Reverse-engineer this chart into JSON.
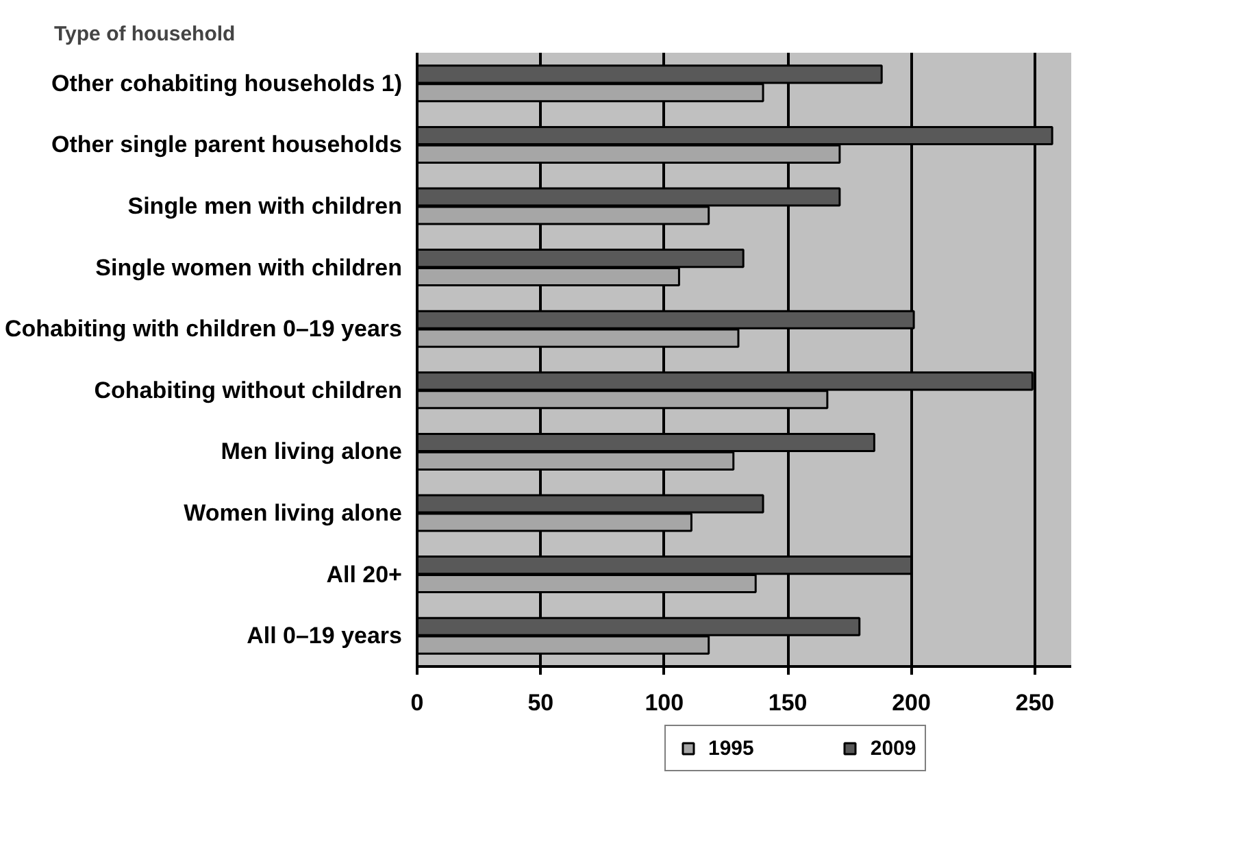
{
  "chart_data": {
    "type": "bar",
    "orientation": "horizontal",
    "title": "Type of household",
    "categories": [
      "Other cohabiting households 1)",
      "Other single parent households",
      "Single men with children",
      "Single women with children",
      "Cohabiting with children 0–19 years",
      "Cohabiting without children",
      "Men living alone",
      "Women living alone",
      "All 20+",
      "All 0–19 years"
    ],
    "series": [
      {
        "name": "1995",
        "color": "#a6a6a6",
        "values": [
          140,
          171,
          118,
          106,
          130,
          166,
          128,
          111,
          137,
          118
        ]
      },
      {
        "name": "2009",
        "color": "#595959",
        "values": [
          188,
          257,
          171,
          132,
          201,
          249,
          185,
          140,
          200,
          179
        ]
      }
    ],
    "xlim": [
      0,
      265
    ],
    "xticks": [
      0,
      50,
      100,
      150,
      200,
      250
    ],
    "grid": "x",
    "legend": "bottom"
  }
}
